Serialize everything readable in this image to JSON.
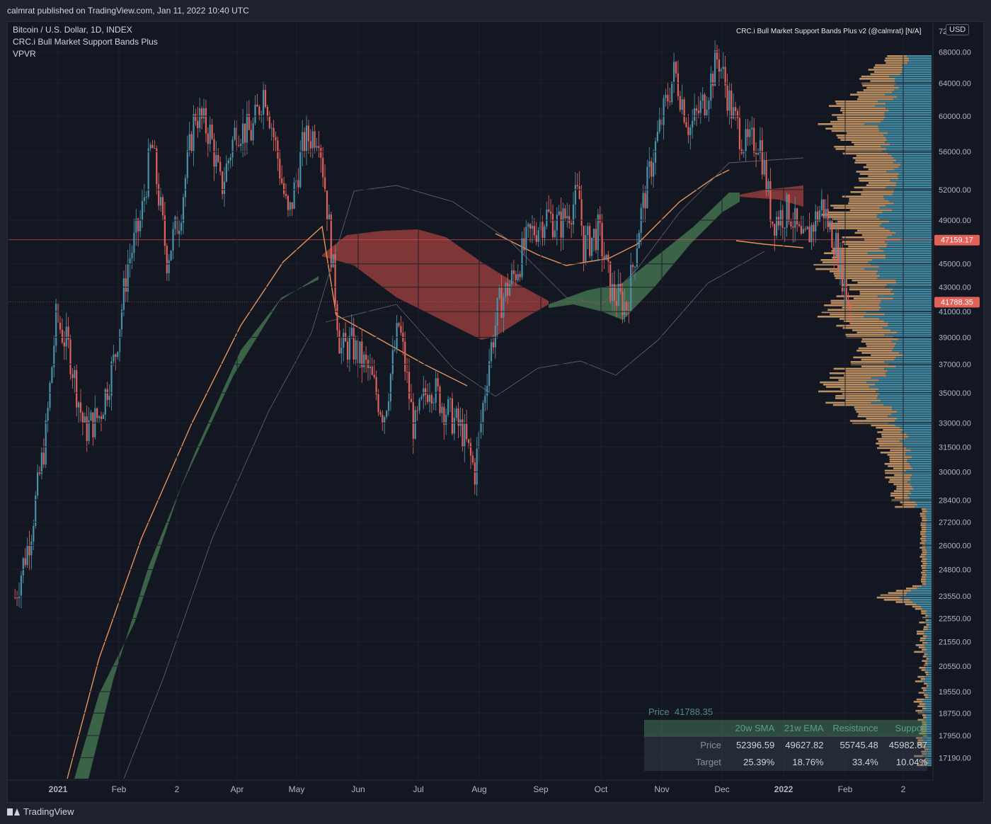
{
  "header": {
    "publish_text": "calmrat published on TradingView.com, Jan 11, 2022 10:40 UTC"
  },
  "legend": {
    "symbol": "Bitcoin / U.S. Dollar, 1D, INDEX",
    "indicator": "CRC.i Bull Market Support Bands Plus",
    "volume_profile": "VPVR"
  },
  "indicator_title": "CRC.i Bull Market Support Bands Plus v2 (@calmrat) [N/A]",
  "currency_button": "USD",
  "footer": {
    "brand": "TradingView"
  },
  "colors": {
    "background": "#131722",
    "up": "#4a90a8",
    "down": "#e0605a",
    "band_green": "#3f6b4d",
    "band_red": "#8c3a3a",
    "ema_line": "#e8925a",
    "resistance_line": "#ff5252",
    "vp_up": "#4a9bb5",
    "vp_down": "#d9a46c"
  },
  "info_table": {
    "price_label": "Price",
    "price_value": "41788.35",
    "headers": [
      "20w SMA",
      "21w EMA",
      "Resistance",
      "Support"
    ],
    "rows": [
      {
        "label": "Price",
        "values": [
          "52396.59",
          "49627.82",
          "55745.48",
          "45982.87"
        ]
      },
      {
        "label": "Target",
        "values": [
          "25.39%",
          "18.76%",
          "33.4%",
          "10.04%"
        ]
      }
    ]
  },
  "chart_data": {
    "type": "candlestick",
    "title": "Bitcoin / U.S. Dollar, 1D, INDEX",
    "x_ticks": [
      "2021",
      "Feb",
      "2",
      "Apr",
      "May",
      "Jun",
      "Jul",
      "Aug",
      "Sep",
      "Oct",
      "Nov",
      "Dec",
      "2022",
      "Feb",
      "2"
    ],
    "y_ticks": [
      68000,
      64000,
      60000,
      56000,
      52000,
      49000,
      45000,
      43000,
      41000,
      39000,
      37000,
      35000,
      33000,
      31500,
      30000,
      28400,
      27200,
      26000,
      24800,
      23550,
      22550,
      21550,
      20550,
      19550,
      18750,
      17950,
      17190
    ],
    "y_tick_labels": [
      "68000.00",
      "64000.00",
      "60000.00",
      "56000.00",
      "52000.00",
      "49000.00",
      "45000.00",
      "43000.00",
      "41000.00",
      "39000.00",
      "37000.00",
      "35000.00",
      "33000.00",
      "31500.00",
      "30000.00",
      "28400.00",
      "27200.00",
      "26000.00",
      "24800.00",
      "23550.00",
      "22550.00",
      "21550.00",
      "20550.00",
      "19550.00",
      "18750.00",
      "17950.00",
      "17190.00"
    ],
    "y_top_partial_label": "72",
    "y_scale": "log",
    "ylim": [
      16500,
      72000
    ],
    "price_labels": [
      {
        "value": 47159.17,
        "text": "47159.17"
      },
      {
        "value": 41788.35,
        "text": "41788.35"
      }
    ],
    "closes": [
      {
        "date": "2020-12-20",
        "close": 23500
      },
      {
        "date": "2020-12-27",
        "close": 26500
      },
      {
        "date": "2021-01-03",
        "close": 32000
      },
      {
        "date": "2021-01-08",
        "close": 40500
      },
      {
        "date": "2021-01-14",
        "close": 38000
      },
      {
        "date": "2021-01-21",
        "close": 32500
      },
      {
        "date": "2021-01-28",
        "close": 33500
      },
      {
        "date": "2021-02-04",
        "close": 37500
      },
      {
        "date": "2021-02-10",
        "close": 45000
      },
      {
        "date": "2021-02-16",
        "close": 49000
      },
      {
        "date": "2021-02-21",
        "close": 57000
      },
      {
        "date": "2021-02-28",
        "close": 45500
      },
      {
        "date": "2021-03-06",
        "close": 49500
      },
      {
        "date": "2021-03-13",
        "close": 60500
      },
      {
        "date": "2021-03-20",
        "close": 58000
      },
      {
        "date": "2021-03-25",
        "close": 52000
      },
      {
        "date": "2021-04-01",
        "close": 58800
      },
      {
        "date": "2021-04-08",
        "close": 58000
      },
      {
        "date": "2021-04-14",
        "close": 63500
      },
      {
        "date": "2021-04-20",
        "close": 55500
      },
      {
        "date": "2021-04-25",
        "close": 49000
      },
      {
        "date": "2021-05-02",
        "close": 57000
      },
      {
        "date": "2021-05-09",
        "close": 58500
      },
      {
        "date": "2021-05-13",
        "close": 50000
      },
      {
        "date": "2021-05-19",
        "close": 38000
      },
      {
        "date": "2021-05-24",
        "close": 38500
      },
      {
        "date": "2021-06-01",
        "close": 36500
      },
      {
        "date": "2021-06-08",
        "close": 33500
      },
      {
        "date": "2021-06-15",
        "close": 40000
      },
      {
        "date": "2021-06-22",
        "close": 32500
      },
      {
        "date": "2021-06-29",
        "close": 35800
      },
      {
        "date": "2021-07-06",
        "close": 34000
      },
      {
        "date": "2021-07-14",
        "close": 32500
      },
      {
        "date": "2021-07-20",
        "close": 30000
      },
      {
        "date": "2021-07-26",
        "close": 37000
      },
      {
        "date": "2021-07-31",
        "close": 41500
      },
      {
        "date": "2021-08-07",
        "close": 44000
      },
      {
        "date": "2021-08-14",
        "close": 47500
      },
      {
        "date": "2021-08-22",
        "close": 49500
      },
      {
        "date": "2021-08-28",
        "close": 48500
      },
      {
        "date": "2021-09-06",
        "close": 51500
      },
      {
        "date": "2021-09-08",
        "close": 46500
      },
      {
        "date": "2021-09-15",
        "close": 48000
      },
      {
        "date": "2021-09-21",
        "close": 42500
      },
      {
        "date": "2021-09-28",
        "close": 41500
      },
      {
        "date": "2021-10-04",
        "close": 49000
      },
      {
        "date": "2021-10-10",
        "close": 55500
      },
      {
        "date": "2021-10-16",
        "close": 61500
      },
      {
        "date": "2021-10-20",
        "close": 65500
      },
      {
        "date": "2021-10-27",
        "close": 58500
      },
      {
        "date": "2021-11-03",
        "close": 62000
      },
      {
        "date": "2021-11-09",
        "close": 67500
      },
      {
        "date": "2021-11-16",
        "close": 60000
      },
      {
        "date": "2021-11-22",
        "close": 56500
      },
      {
        "date": "2021-11-28",
        "close": 57500
      },
      {
        "date": "2021-12-04",
        "close": 49000
      },
      {
        "date": "2021-12-12",
        "close": 50000
      },
      {
        "date": "2021-12-18",
        "close": 46500
      },
      {
        "date": "2021-12-27",
        "close": 50500
      },
      {
        "date": "2022-01-03",
        "close": 46300
      },
      {
        "date": "2022-01-08",
        "close": 41800
      },
      {
        "date": "2022-01-10",
        "close": 41788.35
      }
    ],
    "series": [
      {
        "name": "21w EMA",
        "points": [
          {
            "date": "2020-12-31",
            "value": 17000
          },
          {
            "date": "2021-02-15",
            "value": 26000
          },
          {
            "date": "2021-04-01",
            "value": 39000
          },
          {
            "date": "2021-05-11",
            "value": 47000
          },
          {
            "date": "2021-06-01",
            "value": 41000
          },
          {
            "date": "2021-07-01",
            "value": 37000
          },
          {
            "date": "2021-08-01",
            "value": 34800
          },
          {
            "date": "2021-09-01",
            "value": 47600
          },
          {
            "date": "2021-10-01",
            "value": 46500
          },
          {
            "date": "2021-11-01",
            "value": 49500
          },
          {
            "date": "2021-12-01",
            "value": 53500
          },
          {
            "date": "2022-01-01",
            "value": 48000
          },
          {
            "date": "2022-01-10",
            "value": 47100
          }
        ]
      }
    ]
  }
}
